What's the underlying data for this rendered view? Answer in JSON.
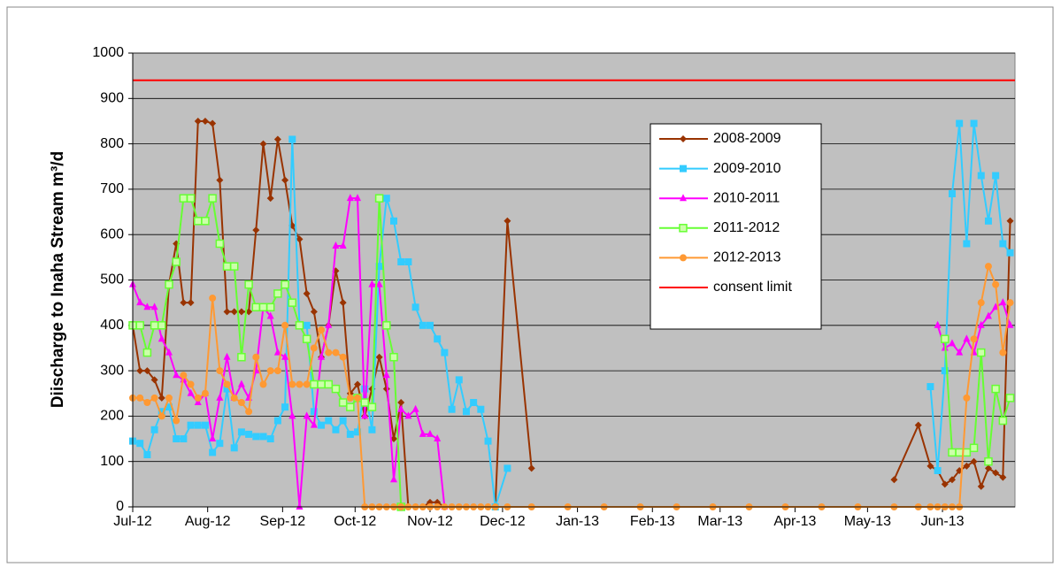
{
  "chart_data": {
    "type": "line",
    "y_label": "Diischarge to Inaha Stream  m³/d",
    "xlim": [
      0,
      365
    ],
    "xticks": [
      {
        "value": 0,
        "label": "Jul-12"
      },
      {
        "value": 31,
        "label": "Aug-12"
      },
      {
        "value": 62,
        "label": "Sep-12"
      },
      {
        "value": 92,
        "label": "Oct-12"
      },
      {
        "value": 123,
        "label": "Nov-12"
      },
      {
        "value": 153,
        "label": "Dec-12"
      },
      {
        "value": 184,
        "label": "Jan-13"
      },
      {
        "value": 215,
        "label": "Feb-13"
      },
      {
        "value": 243,
        "label": "Mar-13"
      },
      {
        "value": 274,
        "label": "Apr-13"
      },
      {
        "value": 304,
        "label": "May-13"
      },
      {
        "value": 335,
        "label": "Jun-13"
      }
    ],
    "ylim": [
      0,
      1000
    ],
    "yticks": [
      0,
      100,
      200,
      300,
      400,
      500,
      600,
      700,
      800,
      900,
      1000
    ],
    "grid": true,
    "legend": "upper right",
    "x": [
      0,
      3,
      6,
      9,
      12,
      15,
      18,
      21,
      24,
      27,
      30,
      33,
      36,
      39,
      42,
      45,
      48,
      51,
      54,
      57,
      60,
      63,
      66,
      69,
      72,
      75,
      78,
      81,
      84,
      87,
      90,
      93,
      96,
      99,
      102,
      105,
      108,
      111,
      114,
      117,
      120,
      123,
      126,
      129,
      132,
      135,
      138,
      141,
      144,
      147,
      150,
      155,
      165,
      180,
      195,
      210,
      225,
      240,
      255,
      270,
      285,
      300,
      315,
      325,
      330,
      333,
      336,
      339,
      342,
      345,
      348,
      351,
      354,
      357,
      360,
      363
    ],
    "series": [
      {
        "name": "2008-2009",
        "color": "#993300",
        "marker": "diamond",
        "values": [
          400,
          300,
          300,
          280,
          240,
          490,
          580,
          450,
          450,
          850,
          850,
          845,
          720,
          430,
          430,
          430,
          430,
          610,
          800,
          680,
          810,
          720,
          620,
          590,
          470,
          430,
          330,
          400,
          520,
          450,
          250,
          270,
          200,
          260,
          330,
          260,
          150,
          230,
          0,
          0,
          0,
          10,
          10,
          0,
          null,
          null,
          null,
          null,
          null,
          0,
          0,
          630,
          85,
          null,
          null,
          null,
          null,
          null,
          null,
          null,
          null,
          null,
          60,
          180,
          90,
          80,
          50,
          60,
          80,
          90,
          100,
          45,
          85,
          75,
          65,
          630
        ]
      },
      {
        "name": "2009-2010",
        "color": "#33ccff",
        "marker": "square",
        "values": [
          145,
          140,
          115,
          170,
          210,
          220,
          150,
          150,
          180,
          180,
          180,
          120,
          140,
          260,
          130,
          165,
          160,
          155,
          155,
          150,
          190,
          220,
          810,
          400,
          400,
          210,
          180,
          190,
          170,
          190,
          160,
          165,
          260,
          170,
          530,
          680,
          630,
          540,
          540,
          440,
          400,
          400,
          370,
          340,
          215,
          280,
          210,
          230,
          215,
          145,
          0,
          85,
          null,
          null,
          null,
          null,
          null,
          null,
          null,
          null,
          null,
          null,
          null,
          null,
          265,
          80,
          300,
          690,
          845,
          580,
          845,
          730,
          630,
          730,
          580,
          560
        ]
      },
      {
        "name": "2010-2011",
        "color": "#ff00ff",
        "marker": "triangle",
        "values": [
          490,
          450,
          440,
          440,
          370,
          340,
          290,
          280,
          250,
          230,
          250,
          150,
          240,
          330,
          240,
          270,
          240,
          300,
          440,
          420,
          340,
          330,
          200,
          0,
          200,
          180,
          330,
          400,
          575,
          575,
          680,
          680,
          200,
          490,
          490,
          290,
          60,
          215,
          200,
          215,
          160,
          160,
          150,
          0,
          null,
          null,
          null,
          null,
          null,
          null,
          null,
          null,
          null,
          null,
          null,
          null,
          null,
          null,
          null,
          null,
          null,
          null,
          null,
          null,
          null,
          400,
          350,
          360,
          340,
          370,
          340,
          400,
          420,
          440,
          450,
          400
        ]
      },
      {
        "name": "2011-2012",
        "color": "#66ff33",
        "marker": "square-x",
        "values": [
          400,
          400,
          340,
          400,
          400,
          490,
          540,
          680,
          680,
          630,
          630,
          680,
          580,
          530,
          530,
          330,
          490,
          440,
          440,
          440,
          470,
          490,
          450,
          400,
          370,
          270,
          270,
          270,
          260,
          230,
          220,
          240,
          230,
          220,
          680,
          400,
          330,
          0,
          null,
          null,
          null,
          null,
          null,
          null,
          null,
          null,
          null,
          null,
          null,
          null,
          null,
          null,
          null,
          null,
          null,
          null,
          null,
          null,
          null,
          null,
          null,
          null,
          null,
          null,
          null,
          null,
          370,
          120,
          120,
          120,
          130,
          340,
          100,
          260,
          190,
          240
        ]
      },
      {
        "name": "2012-2013",
        "color": "#ff9933",
        "marker": "circle",
        "values": [
          240,
          240,
          230,
          240,
          200,
          240,
          190,
          290,
          270,
          240,
          250,
          460,
          300,
          270,
          240,
          230,
          210,
          330,
          270,
          300,
          300,
          400,
          270,
          270,
          270,
          350,
          390,
          340,
          340,
          330,
          240,
          240,
          0,
          0,
          0,
          0,
          0,
          0,
          0,
          0,
          0,
          0,
          0,
          0,
          0,
          0,
          0,
          0,
          0,
          0,
          0,
          0,
          0,
          0,
          0,
          0,
          0,
          0,
          0,
          0,
          0,
          0,
          0,
          0,
          0,
          0,
          0,
          0,
          0,
          240,
          370,
          450,
          530,
          490,
          340,
          450
        ]
      }
    ],
    "reference_line": {
      "name": "consent limit",
      "value": 940,
      "color": "#ff0000"
    }
  }
}
